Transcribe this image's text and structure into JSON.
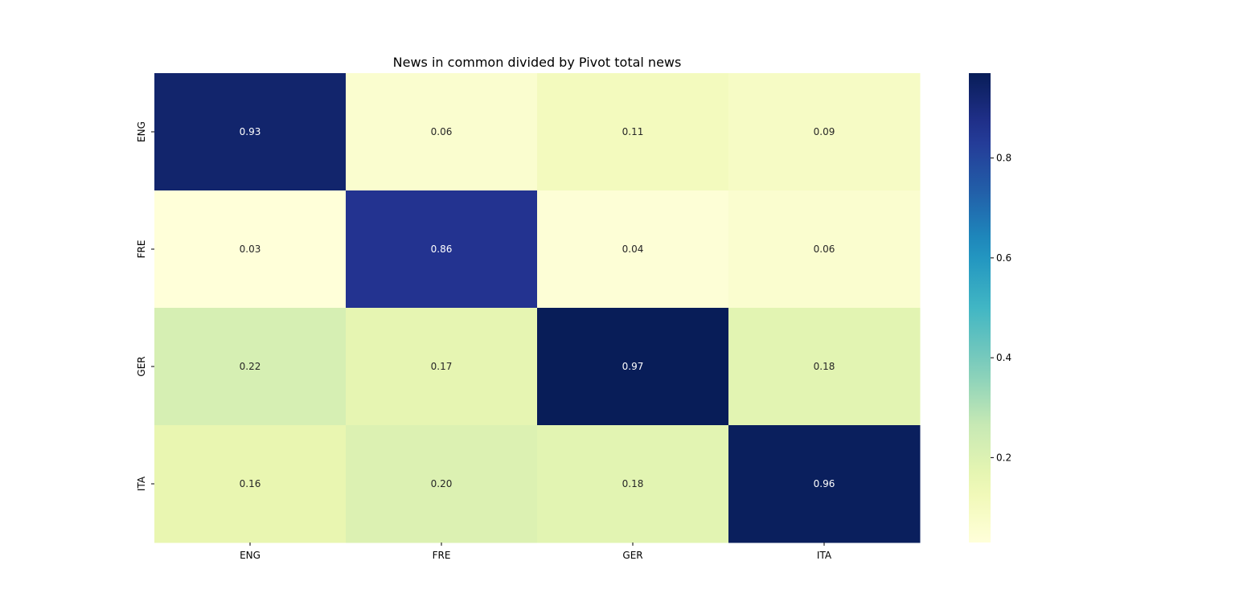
{
  "chart_data": {
    "type": "heatmap",
    "title": "News in common divided by Pivot total news",
    "x_categories": [
      "ENG",
      "FRE",
      "GER",
      "ITA"
    ],
    "y_categories": [
      "ENG",
      "FRE",
      "GER",
      "ITA"
    ],
    "values": [
      [
        0.93,
        0.06,
        0.11,
        0.09
      ],
      [
        0.03,
        0.86,
        0.04,
        0.06
      ],
      [
        0.22,
        0.17,
        0.97,
        0.18
      ],
      [
        0.16,
        0.2,
        0.18,
        0.96
      ]
    ],
    "value_format": "2 decimals",
    "colormap": "YlGnBu",
    "colorbar": {
      "range": [
        0.03,
        0.97
      ],
      "ticks": [
        0.2,
        0.4,
        0.6,
        0.8
      ],
      "tick_labels": [
        "0.2",
        "0.4",
        "0.6",
        "0.8"
      ]
    },
    "grid": false,
    "legend": "colorbar-right"
  }
}
